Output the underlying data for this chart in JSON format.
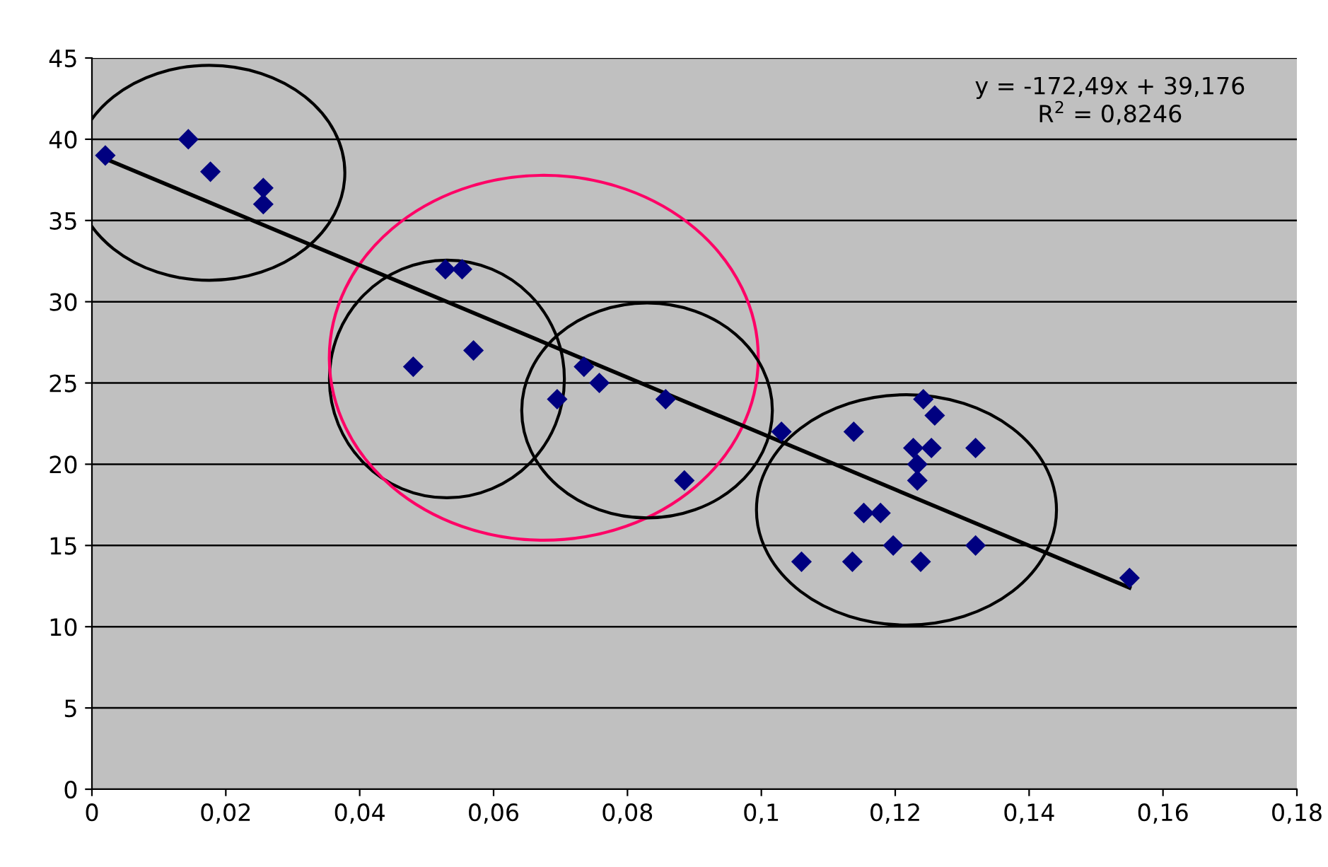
{
  "chart_data": {
    "type": "scatter",
    "x": [
      0.002,
      0.0144,
      0.0177,
      0.0256,
      0.0256,
      0.0528,
      0.0553,
      0.048,
      0.057,
      0.0695,
      0.0735,
      0.0758,
      0.0857,
      0.0885,
      0.103,
      0.106,
      0.1138,
      0.1136,
      0.1153,
      0.1178,
      0.1197,
      0.1227,
      0.1233,
      0.1233,
      0.1242,
      0.1259,
      0.1254,
      0.1238,
      0.132,
      0.132,
      0.155
    ],
    "series": [
      {
        "color": "#000080",
        "marker": "diamond",
        "values": [
          39,
          40,
          38,
          37,
          36,
          32,
          32,
          26,
          27,
          24,
          26,
          25,
          24,
          19,
          22,
          14,
          22,
          14,
          17,
          17,
          15,
          21,
          20,
          19,
          24,
          23,
          21,
          14,
          21,
          15,
          13
        ]
      },
      {
        "type": "line",
        "color": "#000000",
        "line_style": "solid",
        "x": [
          0.002,
          0.155
        ],
        "values": [
          38.8,
          12.4
        ]
      }
    ],
    "annotations": [
      "y = -172,49x + 39,176\nR$^{2}$ = 0,8246"
    ],
    "xlim": [
      0,
      0.18
    ],
    "xticks": [
      0,
      {
        "value": 0.02,
        "label": "0,02"
      },
      {
        "value": 0.04,
        "label": "0,04"
      },
      {
        "value": 0.06,
        "label": "0,06"
      },
      {
        "value": 0.08,
        "label": "0,08"
      },
      {
        "value": 0.1,
        "label": "0,1"
      },
      {
        "value": 0.12,
        "label": "0,12"
      },
      {
        "value": 0.14,
        "label": "0,14"
      },
      {
        "value": 0.16,
        "label": "0,16"
      },
      {
        "value": 0.18,
        "label": "0,18"
      }
    ],
    "ylim": [
      0,
      45
    ],
    "yticks": [
      0,
      5,
      10,
      15,
      20,
      25,
      30,
      35,
      40,
      45
    ],
    "grid": "y",
    "legend": false
  }
}
